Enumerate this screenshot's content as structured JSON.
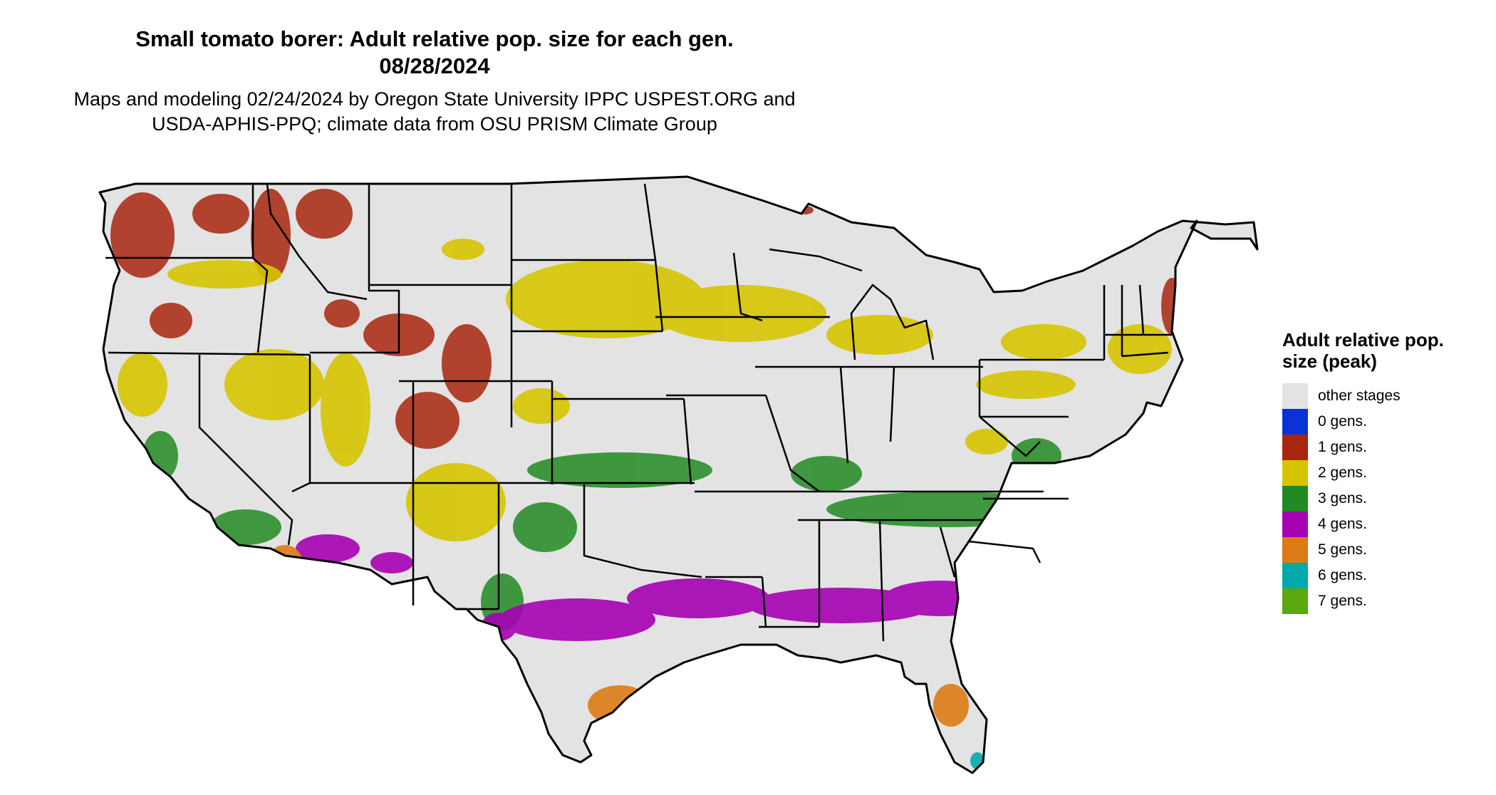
{
  "title": "Small tomato borer: Adult relative pop. size for each gen.",
  "date": "08/28/2024",
  "subtitle_line1": "Maps and modeling 02/24/2024 by Oregon State University IPPC USPEST.ORG and",
  "subtitle_line2": "USDA-APHIS-PPQ; climate data from OSU PRISM Climate Group",
  "legend": {
    "title": "Adult relative pop. size (peak)",
    "items": [
      {
        "label": "other stages",
        "color": "#e3e3e3"
      },
      {
        "label": "0 gens.",
        "color": "#0a32d6"
      },
      {
        "label": "1 gens.",
        "color": "#a8260f"
      },
      {
        "label": "2 gens.",
        "color": "#d6c400"
      },
      {
        "label": "3 gens.",
        "color": "#228a22"
      },
      {
        "label": "4 gens.",
        "color": "#a600b3"
      },
      {
        "label": "5 gens.",
        "color": "#dc7a14"
      },
      {
        "label": "6 gens.",
        "color": "#00a9a9"
      },
      {
        "label": "7 gens.",
        "color": "#5aa80c"
      }
    ]
  },
  "colors": {
    "land": "#e3e3e3",
    "border": "#000000",
    "gen1": "#a8260f",
    "gen2": "#d6c400",
    "gen3": "#228a22",
    "gen4": "#a600b3",
    "gen5": "#dc7a14",
    "gen6": "#00a9a9"
  }
}
